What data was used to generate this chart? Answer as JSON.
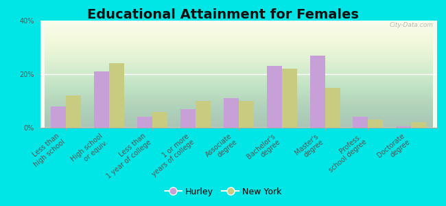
{
  "title": "Educational Attainment for Females",
  "categories": [
    "Less than\nhigh school",
    "High school\nor equiv.",
    "Less than\n1 year of college",
    "1 or more\nyears of college",
    "Associate\ndegree",
    "Bachelor's\ndegree",
    "Master's\ndegree",
    "Profess.\nschool degree",
    "Doctorate\ndegree"
  ],
  "hurley": [
    8.0,
    21.0,
    4.0,
    7.0,
    11.0,
    23.0,
    27.0,
    4.0,
    0.5
  ],
  "new_york": [
    12.0,
    24.0,
    6.0,
    10.0,
    10.0,
    22.0,
    15.0,
    3.0,
    2.0
  ],
  "hurley_color": "#c8a0d8",
  "new_york_color": "#c8cc80",
  "outer_bg": "#00e5e5",
  "ylim": [
    0,
    40
  ],
  "yticks": [
    0,
    20,
    40
  ],
  "ytick_labels": [
    "0%",
    "20%",
    "40%"
  ],
  "bar_width": 0.35,
  "title_fontsize": 14,
  "tick_fontsize": 7,
  "legend_fontsize": 9,
  "watermark": "City-Data.com"
}
